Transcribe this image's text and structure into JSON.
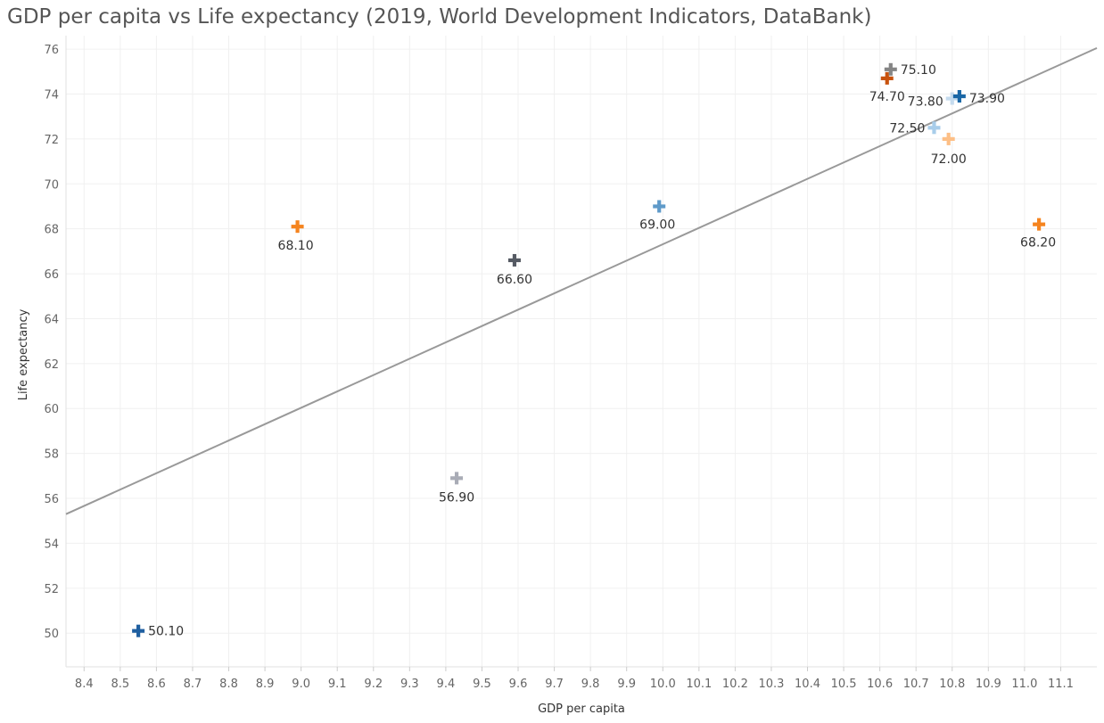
{
  "chart_data": {
    "type": "scatter",
    "title": "GDP per capita vs Life expectancy (2019, World Development Indicators, DataBank)",
    "xlabel": "GDP per capita",
    "ylabel": "Life expectancy",
    "xlim": [
      8.35,
      11.2
    ],
    "ylim": [
      48.5,
      76.6
    ],
    "x_ticks": [
      "8.4",
      "8.5",
      "8.6",
      "8.7",
      "8.8",
      "8.9",
      "9.0",
      "9.1",
      "9.2",
      "9.3",
      "9.4",
      "9.5",
      "9.6",
      "9.7",
      "9.8",
      "9.9",
      "10.0",
      "10.1",
      "10.2",
      "10.3",
      "10.4",
      "10.5",
      "10.6",
      "10.7",
      "10.8",
      "10.9",
      "11.0",
      "11.1"
    ],
    "y_ticks": [
      "50",
      "52",
      "54",
      "56",
      "58",
      "60",
      "62",
      "64",
      "66",
      "68",
      "70",
      "72",
      "74",
      "76"
    ],
    "grid": true,
    "marker": "plus",
    "points": [
      {
        "x": 8.55,
        "y": 50.1,
        "label": "50.10",
        "color": "#1f5fa0"
      },
      {
        "x": 8.99,
        "y": 68.1,
        "label": "68.10",
        "color": "#f5841f"
      },
      {
        "x": 9.43,
        "y": 56.9,
        "label": "56.90",
        "color": "#a9acb6"
      },
      {
        "x": 9.59,
        "y": 66.6,
        "label": "66.60",
        "color": "#555a63"
      },
      {
        "x": 9.99,
        "y": 69.0,
        "label": "69.00",
        "color": "#5f9ac9"
      },
      {
        "x": 10.62,
        "y": 74.7,
        "label": "74.70",
        "color": "#c8520e"
      },
      {
        "x": 10.63,
        "y": 75.1,
        "label": "75.10",
        "color": "#858585"
      },
      {
        "x": 10.75,
        "y": 72.5,
        "label": "72.50",
        "color": "#a8cdea"
      },
      {
        "x": 10.79,
        "y": 72.0,
        "label": "72.00",
        "color": "#fdbf86"
      },
      {
        "x": 10.8,
        "y": 73.8,
        "label": "73.80",
        "color": "#c5dbee"
      },
      {
        "x": 10.82,
        "y": 73.9,
        "label": "73.90",
        "color": "#1a67a6"
      },
      {
        "x": 11.04,
        "y": 68.2,
        "label": "68.20",
        "color": "#f5841f"
      }
    ],
    "trend_line": {
      "x": [
        8.35,
        11.2
      ],
      "y": [
        55.3,
        76.05
      ],
      "color": "#999999"
    }
  }
}
